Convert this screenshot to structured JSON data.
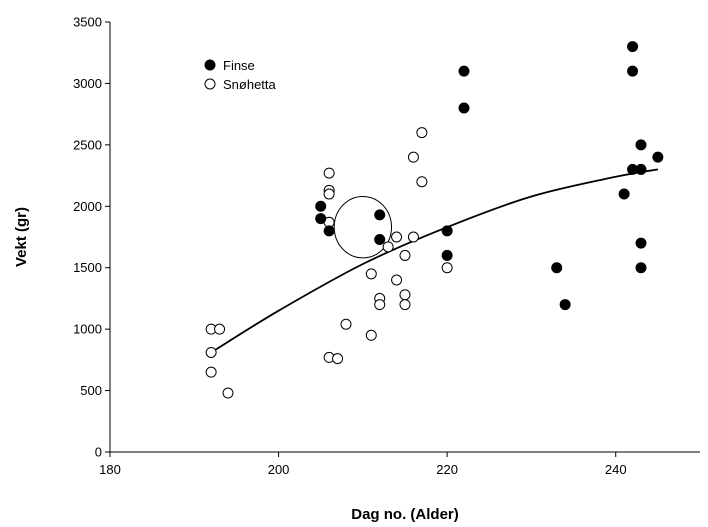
{
  "chart_data": {
    "type": "scatter",
    "xlabel": "Dag no. (Alder)",
    "ylabel": "Vekt (gr)",
    "xlim": [
      180,
      250
    ],
    "ylim": [
      0,
      3500
    ],
    "x_ticks": [
      180,
      200,
      220,
      240
    ],
    "y_ticks": [
      0,
      500,
      1000,
      1500,
      2000,
      2500,
      3000,
      3500
    ],
    "grid": false,
    "legend_position": "top-left",
    "series": [
      {
        "name": "Finse",
        "marker": "filled-circle",
        "color": "#000000",
        "points": [
          [
            205,
            2000
          ],
          [
            205,
            1900
          ],
          [
            206,
            1800
          ],
          [
            212,
            1930
          ],
          [
            212,
            1730
          ],
          [
            220,
            1800
          ],
          [
            220,
            1600
          ],
          [
            222,
            3100
          ],
          [
            222,
            2800
          ],
          [
            233,
            1500
          ],
          [
            234,
            1200
          ],
          [
            241,
            2100
          ],
          [
            242,
            3300
          ],
          [
            242,
            3100
          ],
          [
            242,
            2300
          ],
          [
            243,
            2500
          ],
          [
            243,
            2300
          ],
          [
            243,
            1700
          ],
          [
            243,
            1500
          ],
          [
            245,
            2400
          ]
        ]
      },
      {
        "name": "Snøhetta",
        "marker": "open-circle",
        "color": "#000000",
        "points": [
          [
            192,
            1000
          ],
          [
            193,
            1000
          ],
          [
            192,
            810
          ],
          [
            192,
            650
          ],
          [
            194,
            480
          ],
          [
            206,
            2270
          ],
          [
            206,
            2130
          ],
          [
            206,
            2100
          ],
          [
            206,
            1870
          ],
          [
            206,
            770
          ],
          [
            207,
            760
          ],
          [
            208,
            1040
          ],
          [
            211,
            950
          ],
          [
            211,
            1450
          ],
          [
            212,
            1250
          ],
          [
            212,
            1200
          ],
          [
            213,
            1670
          ],
          [
            214,
            1750
          ],
          [
            214,
            1400
          ],
          [
            215,
            1600
          ],
          [
            215,
            1280
          ],
          [
            215,
            1200
          ],
          [
            216,
            2400
          ],
          [
            216,
            1750
          ],
          [
            217,
            2600
          ],
          [
            217,
            2200
          ],
          [
            220,
            1500
          ]
        ]
      }
    ],
    "trendline": {
      "x": [
        192,
        200,
        210,
        220,
        230,
        240,
        245
      ],
      "y": [
        810,
        1150,
        1530,
        1830,
        2080,
        2240,
        2300
      ]
    },
    "annotations": [
      {
        "type": "ellipse",
        "center": [
          210,
          1830
        ],
        "rx": 3.4,
        "ry": 250
      }
    ]
  }
}
